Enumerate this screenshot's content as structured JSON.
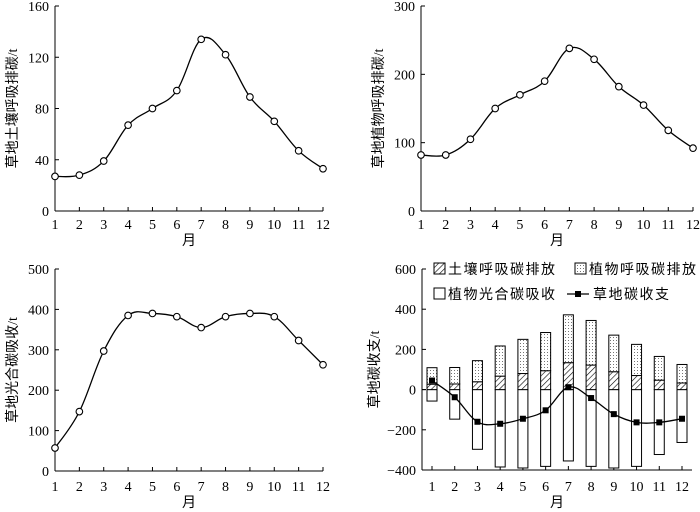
{
  "chart_data": [
    {
      "type": "line",
      "xlabel": "月",
      "ylabel": "草地土壤呼吸排碳/t",
      "x": [
        1,
        2,
        3,
        4,
        5,
        6,
        7,
        8,
        9,
        10,
        11,
        12
      ],
      "values": [
        27,
        28,
        39,
        67,
        80,
        94,
        134,
        122,
        89,
        70,
        47,
        33
      ],
      "ylim": [
        0,
        160
      ],
      "yticks": [
        0,
        40,
        80,
        120,
        160
      ],
      "marker": "open-circle",
      "grid": false
    },
    {
      "type": "line",
      "xlabel": "月",
      "ylabel": "草地植物呼吸排碳/t",
      "x": [
        1,
        2,
        3,
        4,
        5,
        6,
        7,
        8,
        9,
        10,
        11,
        12
      ],
      "values": [
        82,
        82,
        105,
        150,
        170,
        190,
        238,
        222,
        182,
        155,
        118,
        92
      ],
      "ylim": [
        0,
        300
      ],
      "yticks": [
        0,
        100,
        200,
        300
      ],
      "marker": "open-circle",
      "grid": false
    },
    {
      "type": "line",
      "xlabel": "月",
      "ylabel": "草地光合碳吸收/t",
      "x": [
        1,
        2,
        3,
        4,
        5,
        6,
        7,
        8,
        9,
        10,
        11,
        12
      ],
      "values": [
        57,
        147,
        297,
        385,
        390,
        382,
        355,
        382,
        390,
        382,
        323,
        263
      ],
      "ylim": [
        0,
        500
      ],
      "yticks": [
        0,
        100,
        200,
        300,
        400,
        500
      ],
      "marker": "open-circle",
      "grid": false
    },
    {
      "type": "bar",
      "xlabel": "月",
      "ylabel": "草地碳收支/t",
      "categories": [
        "1",
        "2",
        "3",
        "4",
        "5",
        "6",
        "7",
        "8",
        "9",
        "10",
        "11",
        "12"
      ],
      "ylim": [
        -400,
        600
      ],
      "yticks": [
        -400,
        -200,
        0,
        200,
        400,
        600
      ],
      "legend_position": "top",
      "series": [
        {
          "name": "土壤呼吸碳排放",
          "pattern": "hatch",
          "values": [
            27,
            28,
            39,
            67,
            80,
            94,
            134,
            122,
            89,
            70,
            47,
            33
          ]
        },
        {
          "name": "植物呼吸碳排放",
          "pattern": "dots",
          "values": [
            82,
            82,
            105,
            150,
            170,
            190,
            238,
            222,
            182,
            155,
            118,
            92
          ]
        },
        {
          "name": "植物光合碳吸收",
          "pattern": "empty",
          "values": [
            -57,
            -147,
            -297,
            -385,
            -390,
            -382,
            -355,
            -382,
            -390,
            -382,
            -323,
            -263
          ]
        },
        {
          "name": "草地碳收支",
          "type": "line",
          "marker": "filled-square",
          "values": [
            45,
            -38,
            -160,
            -170,
            -145,
            -103,
            12,
            -42,
            -122,
            -163,
            -163,
            -145
          ]
        }
      ]
    }
  ]
}
